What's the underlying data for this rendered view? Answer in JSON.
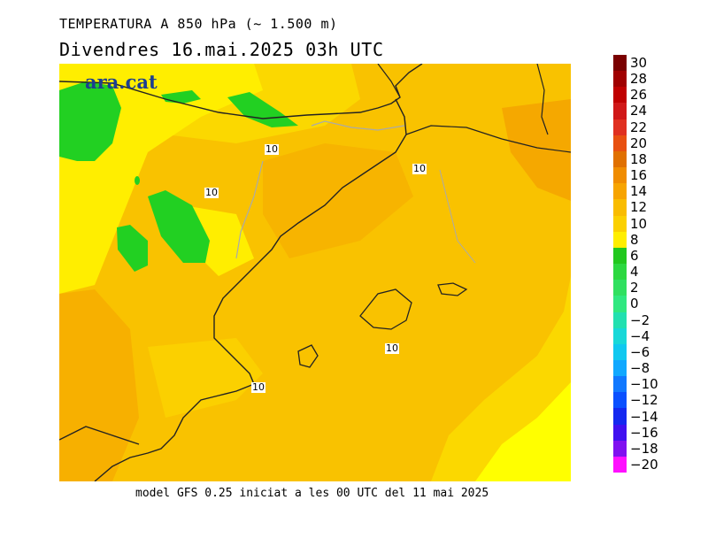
{
  "title": {
    "line1": "TEMPERATURA A 850 hPa (~ 1.500 m)",
    "line2": "Divendres  16.mai.2025 03h UTC"
  },
  "footer": "model GFS 0.25 iniciat a les 00 UTC del 11 mai 2025",
  "watermark": "ara.cat",
  "contour_labels": [
    "10",
    "10",
    "10",
    "10",
    "10"
  ],
  "legend": {
    "labels": [
      "30",
      "28",
      "26",
      "24",
      "22",
      "20",
      "18",
      "16",
      "14",
      "12",
      "10",
      "8",
      "6",
      "4",
      "2",
      "0",
      "−2",
      "−4",
      "−6",
      "−8",
      "−10",
      "−12",
      "−14",
      "−16",
      "−18",
      "−20"
    ],
    "colors": [
      "#7a0000",
      "#a00000",
      "#c00000",
      "#d01818",
      "#e03020",
      "#e85010",
      "#e07000",
      "#f08c00",
      "#f7a400",
      "#f9bc00",
      "#fbd000",
      "#ffee00",
      "#22c81e",
      "#2cd840",
      "#30e060",
      "#30e880",
      "#22e0b0",
      "#18d8d8",
      "#10c8f0",
      "#10a8ff",
      "#1078ff",
      "#0a50ff",
      "#1428f0",
      "#4010f0",
      "#8010f0",
      "#ff10ff"
    ]
  },
  "map_colors": {
    "base": "#f9c200",
    "warm": "#f5a800",
    "cool": "#fbe000",
    "pale": "#ffff00",
    "green": "#22d022",
    "coast": "#222222",
    "border": "#aaaaaa"
  }
}
